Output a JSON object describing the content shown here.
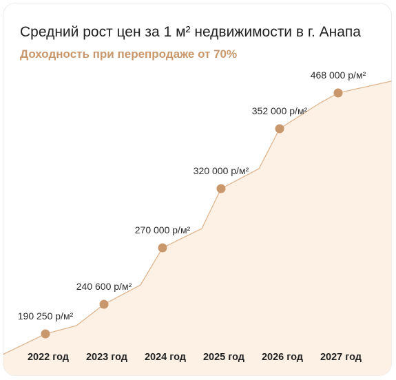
{
  "chart_data": {
    "type": "area",
    "title": "Средний рост цен за 1 м² недвижимости в г. Анапа",
    "subtitle": "Доходность при перепродаже от 70%",
    "categories": [
      "2022 год",
      "2023 год",
      "2024 год",
      "2025 год",
      "2026 год",
      "2027 год"
    ],
    "values": [
      190250,
      240600,
      270000,
      320000,
      352000,
      468000
    ],
    "value_labels": [
      "190 250 р/м²",
      "240 600 р/м²",
      "270 000 р/м²",
      "320 000 р/м²",
      "352 000 р/м²",
      "468 000 р/м²"
    ],
    "colors": {
      "line": "#dfb58f",
      "fill": "#fdf1e6",
      "marker": "#c9976c"
    }
  }
}
